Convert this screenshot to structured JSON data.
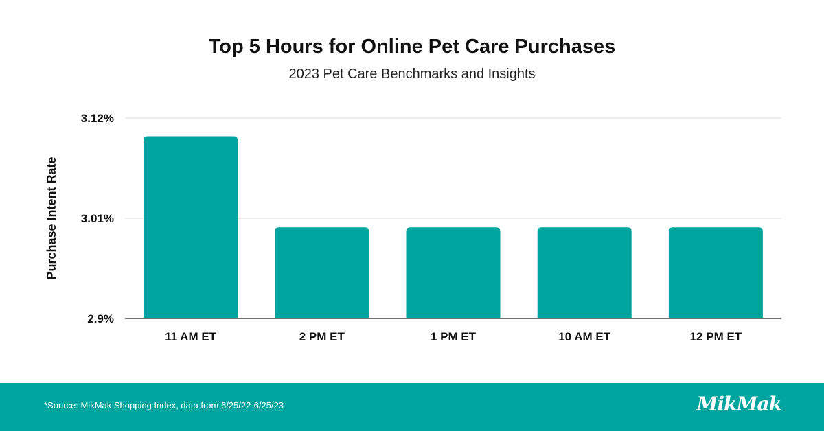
{
  "chart_data": {
    "type": "bar",
    "title": "Top 5 Hours for Online Pet Care Purchases",
    "subtitle": "2023 Pet Care Benchmarks and Insights",
    "ylabel": "Purchase Intent Rate",
    "xlabel": "",
    "categories": [
      "11 AM ET",
      "2 PM ET",
      "1 PM ET",
      "10 AM ET",
      "12 PM ET"
    ],
    "values": [
      3.1,
      3.0,
      3.0,
      3.0,
      3.0
    ],
    "ylim": [
      2.9,
      3.12
    ],
    "yticks": [
      2.9,
      3.01,
      3.12
    ],
    "ytick_labels": [
      "2.9%",
      "3.01%",
      "3.12%"
    ],
    "grid": true,
    "bar_color": "#00a59f"
  },
  "footer": {
    "source": "*Source: MikMak Shopping Index, data from 6/25/22-6/25/23",
    "logo_text": "MikMak",
    "background_color": "#00a59f"
  }
}
